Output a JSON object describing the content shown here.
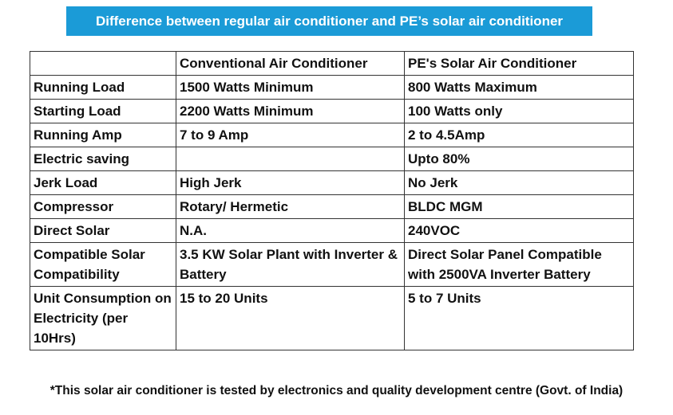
{
  "header": {
    "title": "Difference between regular air conditioner and PE’s solar air conditioner"
  },
  "table": {
    "columns": [
      null,
      "Conventional Air Conditioner",
      "PE's Solar Air Conditioner"
    ],
    "rows": [
      [
        "Running Load",
        "1500 Watts Minimum",
        "800 Watts Maximum"
      ],
      [
        "Starting Load",
        "2200 Watts Minimum",
        "100 Watts only"
      ],
      [
        "Running Amp",
        "7 to 9 Amp",
        "2 to 4.5Amp"
      ],
      [
        "Electric saving",
        null,
        "Upto 80%"
      ],
      [
        "Jerk Load",
        "High Jerk",
        "No Jerk"
      ],
      [
        "Compressor",
        "Rotary/ Hermetic",
        "BLDC MGM"
      ],
      [
        "Direct Solar",
        "N.A.",
        "240VOC"
      ],
      [
        "Compatible Solar Compatibility",
        "3.5 KW Solar Plant with Inverter & Battery",
        "Direct Solar Panel Compatible with 2500VA Inverter Battery"
      ],
      [
        "Unit Consumption on Electricity (per 10Hrs)",
        "15 to 20 Units",
        "5 to 7 Units"
      ]
    ]
  },
  "footnote": "*This solar air conditioner is tested by electronics and quality development centre (Govt. of India)"
}
